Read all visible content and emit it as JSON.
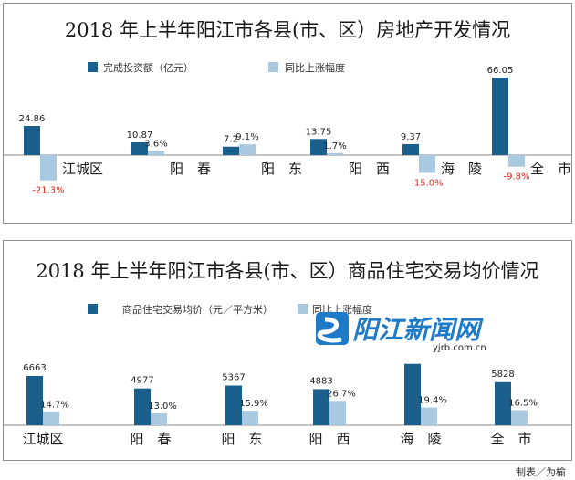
{
  "chart_data": [
    {
      "type": "bar",
      "title": "2018 年上半年阳江市各县(市、区）房地产开发情况",
      "categories": [
        "江城区",
        "阳　春",
        "阳　东",
        "阳　西",
        "海　陵",
        "全　市"
      ],
      "series": [
        {
          "name": "完成投资额（亿元）",
          "values": [
            24.86,
            10.87,
            7.2,
            13.75,
            9.37,
            66.05
          ],
          "labels": [
            "24.86",
            "10.87",
            "7.2",
            "13.75",
            "9.37",
            "66.05"
          ],
          "color": "#1b5f8c"
        },
        {
          "name": "同比上涨幅度",
          "values": [
            -21.3,
            3.6,
            9.1,
            1.7,
            -15.0,
            -9.8
          ],
          "labels": [
            "-21.3%",
            "3.6%",
            "9.1%",
            "1.7%",
            "-15.0%",
            "-9.8%"
          ],
          "color": "#a8c9e0"
        }
      ],
      "negative_label_color": "#e0261b",
      "grid": false,
      "legend": "top-left"
    },
    {
      "type": "bar",
      "title": "2018 年上半年阳江市各县(市、区）商品住宅交易均价情况",
      "categories": [
        "江城区",
        "阳　春",
        "阳　东",
        "阳　西",
        "海　陵",
        "全　市"
      ],
      "series": [
        {
          "name": "商品住宅交易均价（元／平方米）",
          "values": [
            6663,
            4977,
            5367,
            4883,
            8300,
            5828
          ],
          "labels": [
            "6663",
            "4977",
            "5367",
            "4883",
            "",
            "5828"
          ],
          "color": "#1b5f8c"
        },
        {
          "name": "同比上涨幅度",
          "values": [
            14.7,
            13.0,
            15.9,
            26.7,
            19.4,
            16.5
          ],
          "labels": [
            "14.7%",
            "13.0%",
            "15.9%",
            "26.7%",
            "19.4%",
            "16.5%"
          ],
          "color": "#a8c9e0"
        }
      ],
      "grid": false,
      "legend": "top-left"
    }
  ],
  "watermark": {
    "name": "阳江新闻网",
    "url": "yjrb.com.cn"
  },
  "credit": "制表／为榆"
}
